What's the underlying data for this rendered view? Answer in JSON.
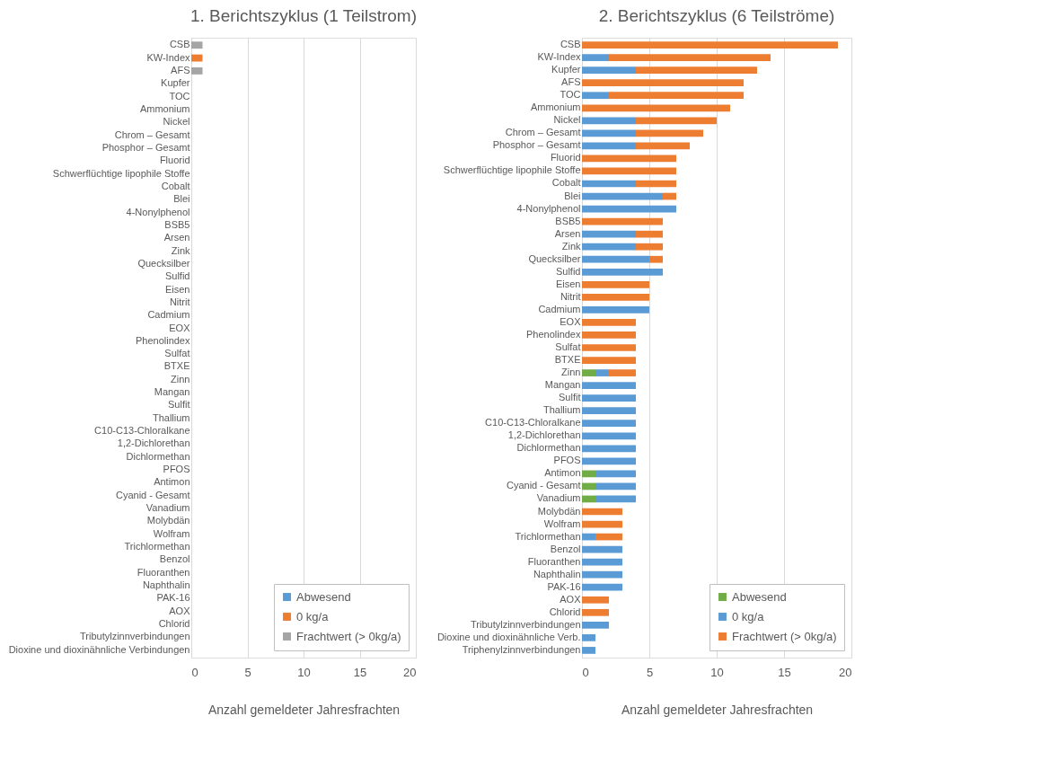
{
  "chart_data": [
    {
      "type": "bar",
      "orientation": "horizontal",
      "stacked": true,
      "title": "1. Berichtszyklus (1 Teilstrom)",
      "xlabel": "Anzahl gemeldeter Jahresfrachten",
      "xlim": [
        0,
        20
      ],
      "xticks": [
        0,
        5,
        10,
        15,
        20
      ],
      "grid": "x",
      "legend": "bottom right",
      "categories": [
        "CSB",
        "KW-Index",
        "AFS",
        "Kupfer",
        "TOC",
        "Ammonium",
        "Nickel",
        "Chrom – Gesamt",
        "Phosphor – Gesamt",
        "Fluorid",
        "Schwerflüchtige lipophile Stoffe",
        "Cobalt",
        "Blei",
        "4-Nonylphenol",
        "BSB5",
        "Arsen",
        "Zink",
        "Quecksilber",
        "Sulfid",
        "Eisen",
        "Nitrit",
        "Cadmium",
        "EOX",
        "Phenolindex",
        "Sulfat",
        "BTXE",
        "Zinn",
        "Mangan",
        "Sulfit",
        "Thallium",
        "C10-C13-Chloralkane",
        "1,2-Dichlorethan",
        "Dichlormethan",
        "PFOS",
        "Antimon",
        "Cyanid - Gesamt",
        "Vanadium",
        "Molybdän",
        "Wolfram",
        "Trichlormethan",
        "Benzol",
        "Fluoranthen",
        "Naphthalin",
        "PAK-16",
        "AOX",
        "Chlorid",
        "Tributylzinnverbindungen",
        "Dioxine und dioxinähnliche Verbindungen"
      ],
      "series": [
        {
          "name": "Abwesend",
          "color": "#5b9bd5",
          "values": [
            0,
            0,
            0,
            0,
            0,
            0,
            0,
            0,
            0,
            0,
            0,
            0,
            0,
            0,
            0,
            0,
            0,
            0,
            0,
            0,
            0,
            0,
            0,
            0,
            0,
            0,
            0,
            0,
            0,
            0,
            0,
            0,
            0,
            0,
            0,
            0,
            0,
            0,
            0,
            0,
            0,
            0,
            0,
            0,
            0,
            0,
            0,
            0
          ]
        },
        {
          "name": "0 kg/a",
          "color": "#ed7d31",
          "values": [
            0,
            1,
            0,
            0,
            0,
            0,
            0,
            0,
            0,
            0,
            0,
            0,
            0,
            0,
            0,
            0,
            0,
            0,
            0,
            0,
            0,
            0,
            0,
            0,
            0,
            0,
            0,
            0,
            0,
            0,
            0,
            0,
            0,
            0,
            0,
            0,
            0,
            0,
            0,
            0,
            0,
            0,
            0,
            0,
            0,
            0,
            0,
            0
          ]
        },
        {
          "name": "Frachtwert (> 0kg/a)",
          "color": "#a5a5a5",
          "values": [
            1,
            0,
            1,
            0,
            0,
            0,
            0,
            0,
            0,
            0,
            0,
            0,
            0,
            0,
            0,
            0,
            0,
            0,
            0,
            0,
            0,
            0,
            0,
            0,
            0,
            0,
            0,
            0,
            0,
            0,
            0,
            0,
            0,
            0,
            0,
            0,
            0,
            0,
            0,
            0,
            0,
            0,
            0,
            0,
            0,
            0,
            0,
            0
          ]
        }
      ]
    },
    {
      "type": "bar",
      "orientation": "horizontal",
      "stacked": true,
      "title": "2. Berichtszyklus (6 Teilströme)",
      "xlabel": "Anzahl gemeldeter Jahresfrachten",
      "xlim": [
        0,
        20
      ],
      "xticks": [
        0,
        5,
        10,
        15,
        20
      ],
      "grid": "x",
      "legend": "bottom right",
      "categories": [
        "CSB",
        "KW-Index",
        "Kupfer",
        "AFS",
        "TOC",
        "Ammonium",
        "Nickel",
        "Chrom – Gesamt",
        "Phosphor – Gesamt",
        "Fluorid",
        "Schwerflüchtige lipophile Stoffe",
        "Cobalt",
        "Blei",
        "4-Nonylphenol",
        "BSB5",
        "Arsen",
        "Zink",
        "Quecksilber",
        "Sulfid",
        "Eisen",
        "Nitrit",
        "Cadmium",
        "EOX",
        "Phenolindex",
        "Sulfat",
        "BTXE",
        "Zinn",
        "Mangan",
        "Sulfit",
        "Thallium",
        "C10-C13-Chloralkane",
        "1,2-Dichlorethan",
        "Dichlormethan",
        "PFOS",
        "Antimon",
        "Cyanid - Gesamt",
        "Vanadium",
        "Molybdän",
        "Wolfram",
        "Trichlormethan",
        "Benzol",
        "Fluoranthen",
        "Naphthalin",
        "PAK-16",
        "AOX",
        "Chlorid",
        "Tributylzinnverbindungen",
        "Dioxine und dioxinähnliche Verb.",
        "Triphenylzinnverbindungen"
      ],
      "series": [
        {
          "name": "Abwesend",
          "color": "#70ad47",
          "values": [
            0,
            0,
            0,
            0,
            0,
            0,
            0,
            0,
            0,
            0,
            0,
            0,
            0,
            0,
            0,
            0,
            0,
            0,
            0,
            0,
            0,
            0,
            0,
            0,
            0,
            0,
            1,
            0,
            0,
            0,
            0,
            0,
            0,
            0,
            1,
            1,
            1,
            0,
            0,
            0,
            0,
            0,
            0,
            0,
            0,
            0,
            0,
            0,
            0
          ]
        },
        {
          "name": "0 kg/a",
          "color": "#5b9bd5",
          "values": [
            0,
            2,
            4,
            0,
            2,
            0,
            4,
            4,
            4,
            0,
            0,
            4,
            6,
            7,
            0,
            4,
            4,
            5,
            6,
            0,
            0,
            5,
            0,
            0,
            0,
            0,
            1,
            4,
            4,
            4,
            4,
            4,
            4,
            4,
            3,
            3,
            3,
            0,
            0,
            1,
            3,
            3,
            3,
            3,
            0,
            0,
            2,
            1,
            1
          ]
        },
        {
          "name": "Frachtwert (> 0kg/a)",
          "color": "#ed7d31",
          "values": [
            19,
            12,
            9,
            12,
            10,
            11,
            6,
            5,
            4,
            7,
            7,
            3,
            1,
            0,
            6,
            2,
            2,
            1,
            0,
            5,
            5,
            0,
            4,
            4,
            4,
            4,
            2,
            0,
            0,
            0,
            0,
            0,
            0,
            0,
            0,
            0,
            0,
            3,
            3,
            2,
            0,
            0,
            0,
            0,
            2,
            2,
            0,
            0,
            0
          ]
        }
      ]
    }
  ]
}
